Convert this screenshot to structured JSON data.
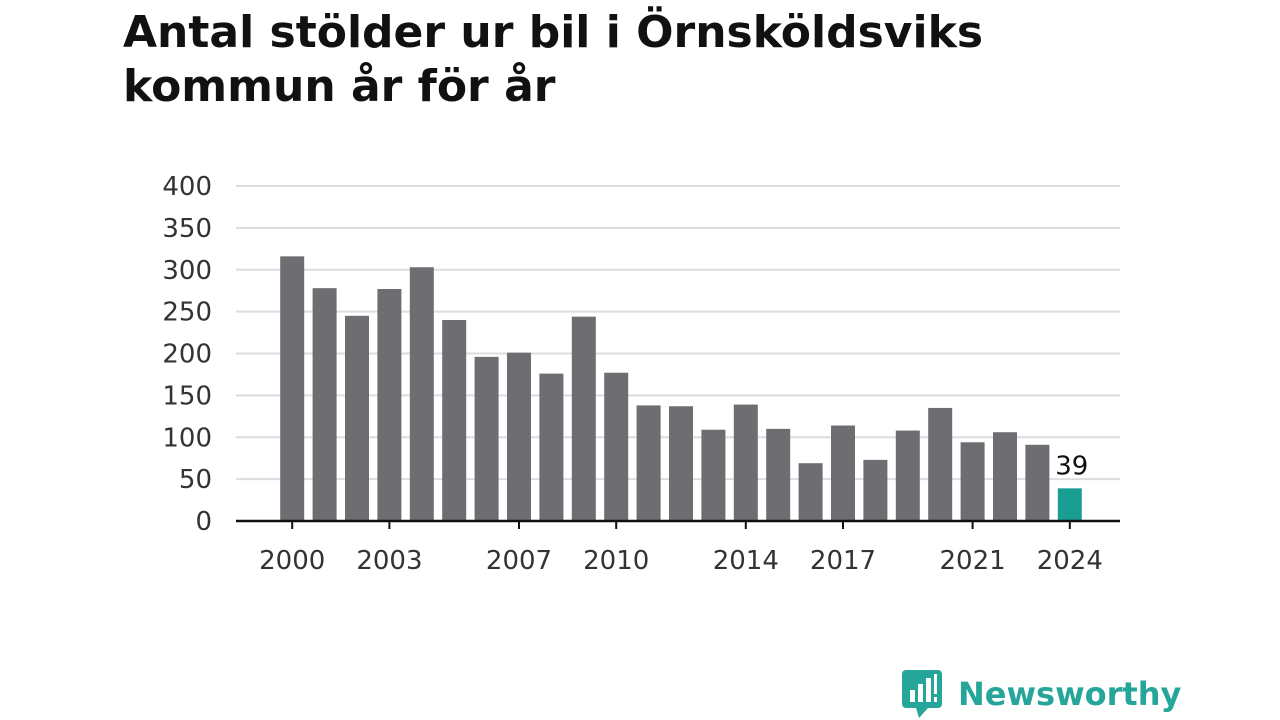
{
  "title": "Antal stölder ur bil i Örnsköldsviks kommun år för år",
  "brand": {
    "name": "Newsworthy",
    "icon": "bar-chart-speech-bubble-icon",
    "color": "#26a69a"
  },
  "colors": {
    "bar": "#6d6d72",
    "highlight": "#1a9e94",
    "grid": "#dddddd",
    "axis": "#111111",
    "tick_text": "#333333"
  },
  "chart_data": {
    "type": "bar",
    "title": "Antal stölder ur bil i Örnsköldsviks kommun år för år",
    "xlabel": "",
    "ylabel": "",
    "categories": [
      "2000",
      "2001",
      "2002",
      "2003",
      "2004",
      "2005",
      "2006",
      "2007",
      "2008",
      "2009",
      "2010",
      "2011",
      "2012",
      "2013",
      "2014",
      "2015",
      "2016",
      "2017",
      "2018",
      "2019",
      "2020",
      "2021",
      "2022",
      "2023",
      "2024"
    ],
    "values": [
      316,
      278,
      245,
      277,
      303,
      240,
      196,
      201,
      176,
      244,
      177,
      138,
      137,
      109,
      139,
      110,
      69,
      114,
      73,
      108,
      135,
      94,
      106,
      91,
      39
    ],
    "x_tick_labels": [
      "2000",
      "2003",
      "2007",
      "2010",
      "2014",
      "2017",
      "2021",
      "2024"
    ],
    "y_ticks": [
      0,
      50,
      100,
      150,
      200,
      250,
      300,
      350,
      400
    ],
    "ylim": [
      0,
      400
    ],
    "grid": true,
    "highlight_category": "2024",
    "data_labels": [
      {
        "category": "2024",
        "text": "39"
      }
    ]
  }
}
